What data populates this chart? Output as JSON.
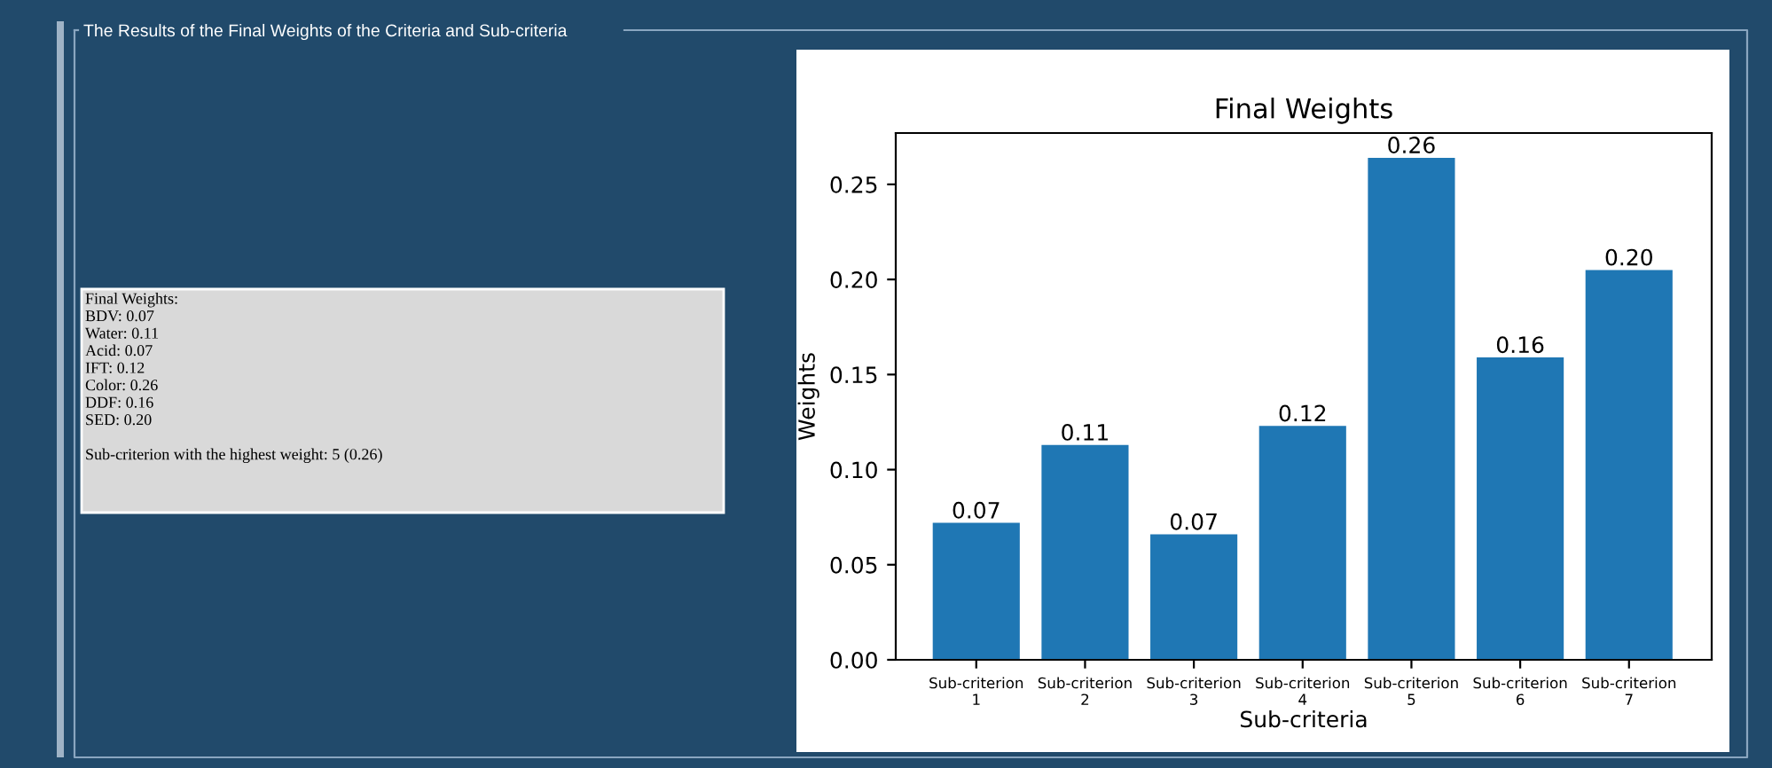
{
  "chart_data": {
    "type": "bar",
    "title": "Final Weights",
    "xlabel": "Sub-criteria",
    "ylabel": "Weights",
    "categories": [
      "Sub-criterion 1",
      "Sub-criterion 2",
      "Sub-criterion 3",
      "Sub-criterion 4",
      "Sub-criterion 5",
      "Sub-criterion 6",
      "Sub-criterion 7"
    ],
    "values": [
      0.072,
      0.113,
      0.066,
      0.123,
      0.264,
      0.159,
      0.205
    ],
    "value_labels": [
      "0.07",
      "0.11",
      "0.07",
      "0.12",
      "0.26",
      "0.16",
      "0.20"
    ],
    "color": "#1f77b4",
    "ylim": [
      0,
      0.277
    ],
    "yticks": [
      {
        "value": 0,
        "label": "0.00"
      },
      0.05,
      {
        "value": 0.1,
        "label": "0.10"
      },
      0.15,
      {
        "value": 0.2,
        "label": "0.20"
      },
      0.25
    ],
    "grid": false,
    "annotations": [
      "The Results of the Final Weights of the Criteria and Sub-criteria",
      "Final Weights:\nBDV: 0.07\nWater: 0.11\nAcid: 0.07\nIFT: 0.12\nColor: 0.26\nDDF: 0.16\nSED: 0.20\n\nSub-criterion with the highest weight: 5 (0.26)"
    ]
  }
}
